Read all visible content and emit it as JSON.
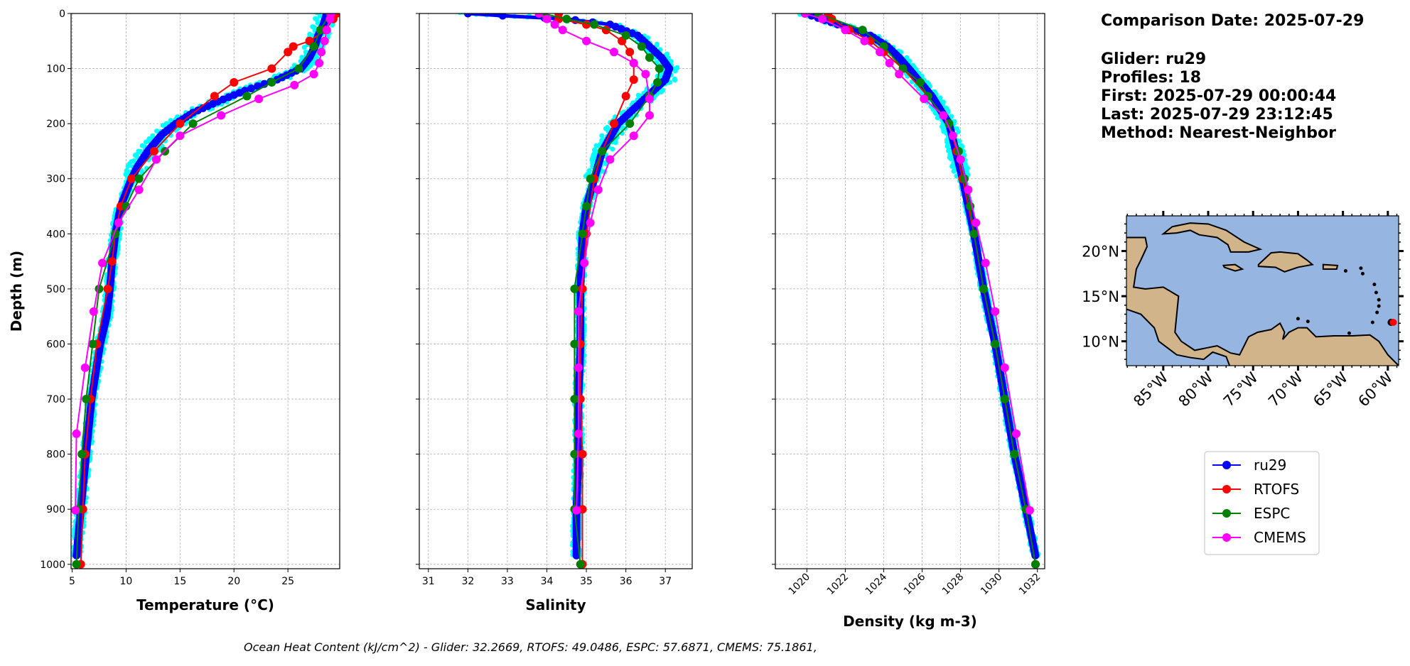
{
  "info": {
    "comparison_date": "Comparison Date: 2025-07-29",
    "glider": "Glider: ru29",
    "profiles": "Profiles: 18",
    "first": "First: 2025-07-29 00:00:44",
    "last": "Last: 2025-07-29 23:12:45",
    "method": "Method: Nearest-Neighbor"
  },
  "footer": "Ocean Heat Content (kJ/cm^2) - Glider: 32.2669,  RTOFS: 49.0486,  ESPC: 57.6871,  CMEMS: 75.1861,",
  "colors": {
    "ru29": "#0000ff",
    "ru29_profiles": "#00ffff",
    "RTOFS": "#ff0000",
    "ESPC": "#008000",
    "CMEMS": "#ff00ff",
    "ocean": "#96b5e1",
    "land": "#d2b48b"
  },
  "legend": [
    {
      "name": "ru29",
      "color": "#0000ff"
    },
    {
      "name": "RTOFS",
      "color": "#ff0000"
    },
    {
      "name": "ESPC",
      "color": "#008000"
    },
    {
      "name": "CMEMS",
      "color": "#ff00ff"
    }
  ],
  "map": {
    "lat_ticks": [
      "20°N",
      "15°N",
      "10°N"
    ],
    "lat_values": [
      20,
      15,
      10
    ],
    "lon_ticks": [
      "85°W",
      "80°W",
      "75°W",
      "70°W",
      "65°W",
      "60°W"
    ],
    "lon_values": [
      -85,
      -80,
      -75,
      -70,
      -65,
      -60
    ],
    "extent": {
      "lon": [
        -89.1,
        -58.8
      ],
      "lat": [
        7.3,
        23.9
      ]
    },
    "glider_position": {
      "lon": -59.4,
      "lat": 12.1
    }
  },
  "chart_data": [
    {
      "type": "line",
      "xlabel": "Temperature (°C)",
      "ylabel": "Depth (m)",
      "xlim": [
        4.9,
        29.8
      ],
      "ylim": [
        1008,
        0
      ],
      "xticks": [
        5,
        10,
        15,
        20,
        25
      ],
      "yticks": [
        0,
        100,
        200,
        300,
        400,
        500,
        600,
        700,
        800,
        900,
        1000
      ],
      "grid": true,
      "profile_spread": 0.6,
      "series": [
        {
          "name": "ru29",
          "depth": [
            0,
            20,
            40,
            60,
            80,
            100,
            120,
            140,
            160,
            180,
            200,
            220,
            250,
            280,
            300,
            350,
            400,
            450,
            500,
            550,
            600,
            650,
            700,
            800,
            900,
            985
          ],
          "values": [
            28.6,
            28.3,
            27.8,
            27.5,
            27.0,
            26.2,
            24.0,
            21.0,
            18.5,
            16.2,
            14.6,
            13.3,
            12.0,
            11.0,
            10.5,
            9.5,
            9.0,
            8.7,
            8.5,
            8.2,
            7.6,
            7.2,
            6.8,
            6.3,
            5.8,
            5.4
          ]
        },
        {
          "name": "RTOFS",
          "depth": [
            0,
            10,
            30,
            50,
            60,
            70,
            100,
            125,
            150,
            200,
            250,
            300,
            350,
            400,
            450,
            500,
            600,
            700,
            800,
            900,
            1000
          ],
          "values": [
            29.5,
            29.2,
            28.5,
            27.0,
            25.5,
            25.0,
            23.5,
            20.0,
            18.2,
            15.0,
            12.6,
            10.5,
            9.5,
            9.0,
            8.7,
            8.3,
            7.3,
            6.7,
            6.2,
            6.0,
            5.8
          ]
        },
        {
          "name": "ESPC",
          "depth": [
            0,
            30,
            60,
            100,
            125,
            150,
            200,
            250,
            300,
            350,
            400,
            500,
            600,
            700,
            800,
            900,
            1000
          ],
          "values": [
            28.9,
            28.0,
            27.4,
            26.0,
            23.5,
            21.2,
            16.2,
            13.6,
            11.2,
            10.0,
            9.0,
            7.5,
            6.9,
            6.3,
            5.9,
            5.6,
            5.4
          ]
        },
        {
          "name": "CMEMS",
          "depth": [
            0,
            10,
            30,
            50,
            70,
            90,
            110,
            130,
            155,
            185,
            222,
            265,
            320,
            380,
            453,
            541,
            643,
            763,
            902
          ],
          "values": [
            29.0,
            28.9,
            28.6,
            28.4,
            28.1,
            27.9,
            27.4,
            25.6,
            22.3,
            18.8,
            15.0,
            12.8,
            11.2,
            9.3,
            7.8,
            7.0,
            6.2,
            5.4,
            5.3
          ]
        }
      ]
    },
    {
      "type": "line",
      "xlabel": "Salinity",
      "ylabel": "",
      "xlim": [
        30.77,
        37.68
      ],
      "ylim": [
        1008,
        0
      ],
      "xticks": [
        31,
        32,
        33,
        34,
        35,
        36,
        37
      ],
      "yticks": [
        0,
        100,
        200,
        300,
        400,
        500,
        600,
        700,
        800,
        900,
        1000
      ],
      "grid": true,
      "profile_spread": 0.15,
      "series": [
        {
          "name": "ru29",
          "depth": [
            0,
            5,
            10,
            20,
            40,
            60,
            80,
            100,
            120,
            140,
            160,
            180,
            200,
            250,
            300,
            350,
            400,
            500,
            600,
            700,
            800,
            900,
            985
          ],
          "values": [
            32.0,
            33.1,
            34.5,
            35.6,
            36.3,
            36.6,
            36.9,
            37.1,
            37.0,
            36.7,
            36.4,
            36.1,
            35.8,
            35.4,
            35.2,
            35.0,
            34.9,
            34.85,
            34.85,
            34.8,
            34.8,
            34.75,
            34.75
          ]
        },
        {
          "name": "RTOFS",
          "depth": [
            0,
            10,
            20,
            30,
            50,
            70,
            90,
            120,
            150,
            200,
            250,
            300,
            400,
            500,
            600,
            700,
            800,
            900,
            1000
          ],
          "values": [
            34.3,
            34.3,
            35.0,
            35.5,
            35.9,
            36.1,
            36.2,
            36.2,
            36.0,
            35.7,
            35.4,
            35.2,
            35.0,
            34.9,
            34.85,
            34.85,
            34.9,
            34.9,
            34.9
          ]
        },
        {
          "name": "ESPC",
          "depth": [
            0,
            10,
            20,
            40,
            60,
            80,
            100,
            125,
            150,
            200,
            250,
            300,
            350,
            400,
            500,
            600,
            700,
            800,
            900,
            1000
          ],
          "values": [
            33.9,
            34.5,
            35.2,
            36.0,
            36.4,
            36.6,
            36.85,
            36.8,
            36.6,
            36.1,
            35.4,
            35.1,
            35.0,
            34.9,
            34.7,
            34.7,
            34.7,
            34.7,
            34.7,
            34.85
          ]
        },
        {
          "name": "CMEMS",
          "depth": [
            0,
            10,
            20,
            30,
            50,
            70,
            90,
            110,
            155,
            185,
            222,
            265,
            320,
            380,
            453,
            541,
            643,
            763,
            902
          ],
          "values": [
            33.8,
            34.0,
            34.2,
            34.4,
            35.0,
            35.7,
            36.2,
            36.5,
            36.6,
            36.6,
            36.2,
            35.6,
            35.3,
            35.1,
            34.95,
            34.8,
            34.8,
            34.8,
            34.75
          ]
        }
      ]
    },
    {
      "type": "line",
      "xlabel": "Density (kg m-3)",
      "ylabel": "",
      "xlim": [
        1018.36,
        1032.38
      ],
      "ylim": [
        1008,
        0
      ],
      "xticks": [
        1020,
        1022,
        1024,
        1026,
        1028,
        1030,
        1032
      ],
      "yticks": [
        0,
        100,
        200,
        300,
        400,
        500,
        600,
        700,
        800,
        900,
        1000
      ],
      "grid": true,
      "profile_spread": 0.25,
      "series": [
        {
          "name": "ru29",
          "depth": [
            0,
            20,
            40,
            60,
            80,
            100,
            150,
            200,
            300,
            400,
            500,
            600,
            700,
            800,
            900,
            985
          ],
          "values": [
            1019.9,
            1021.6,
            1023.3,
            1024.2,
            1024.8,
            1025.3,
            1026.5,
            1027.4,
            1028.1,
            1028.7,
            1029.2,
            1029.8,
            1030.3,
            1030.8,
            1031.4,
            1031.9
          ]
        },
        {
          "name": "RTOFS",
          "depth": [
            0,
            10,
            30,
            50,
            70,
            100,
            150,
            200,
            250,
            300,
            400,
            500,
            600,
            700,
            800,
            900,
            1000
          ],
          "values": [
            1021.1,
            1021.3,
            1022.2,
            1023.3,
            1024.0,
            1025.0,
            1026.3,
            1027.4,
            1027.8,
            1028.1,
            1028.7,
            1029.2,
            1029.8,
            1030.3,
            1030.8,
            1031.4,
            1031.9
          ]
        },
        {
          "name": "ESPC",
          "depth": [
            0,
            30,
            60,
            100,
            125,
            150,
            200,
            250,
            300,
            350,
            400,
            500,
            600,
            700,
            800,
            900,
            1000
          ],
          "values": [
            1020.6,
            1022.9,
            1024.0,
            1025.0,
            1025.9,
            1026.3,
            1027.4,
            1027.9,
            1028.2,
            1028.5,
            1028.7,
            1029.2,
            1029.8,
            1030.3,
            1030.8,
            1031.4,
            1031.9
          ]
        },
        {
          "name": "CMEMS",
          "depth": [
            0,
            10,
            30,
            50,
            70,
            90,
            110,
            155,
            185,
            222,
            265,
            320,
            380,
            453,
            541,
            643,
            763,
            902
          ],
          "values": [
            1019.9,
            1020.8,
            1022.0,
            1023.0,
            1023.8,
            1024.3,
            1024.8,
            1026.1,
            1027.1,
            1027.6,
            1028.0,
            1028.4,
            1028.8,
            1029.3,
            1029.8,
            1030.3,
            1030.9,
            1031.6
          ]
        }
      ]
    }
  ]
}
